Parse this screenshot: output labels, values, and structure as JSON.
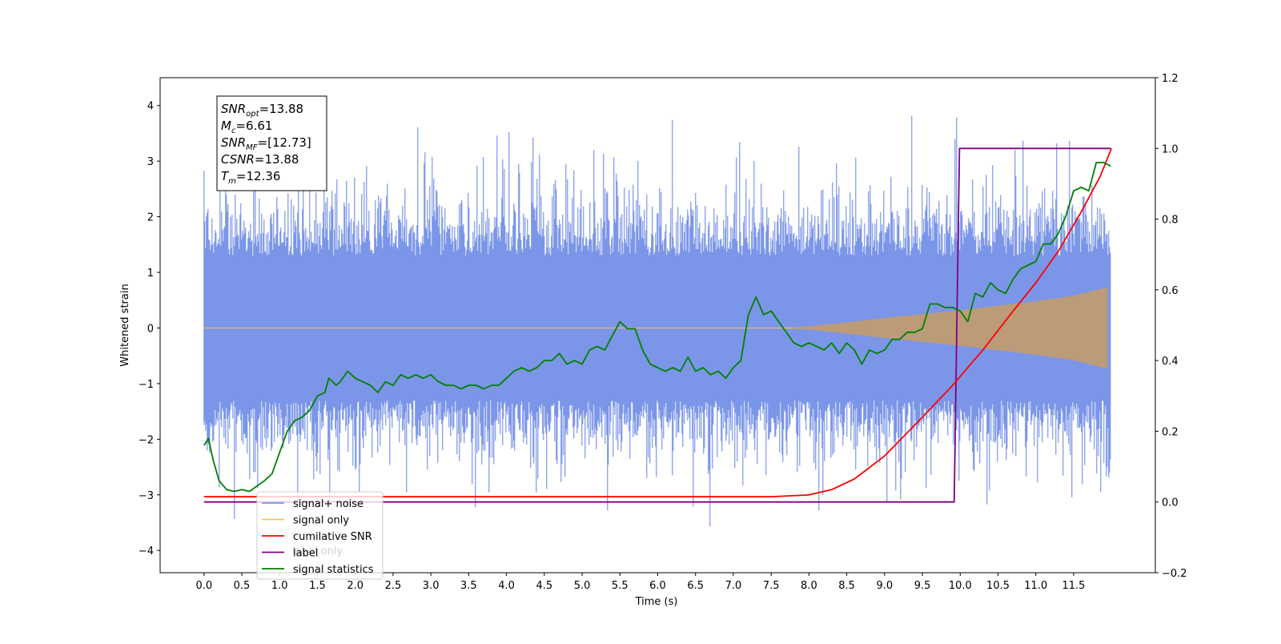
{
  "chart_data": {
    "type": "line",
    "xlabel": "Time (s)",
    "ylabel": "Whitened strain",
    "xlim": [
      -0.58,
      12.58
    ],
    "ylim": [
      -4.4,
      4.5
    ],
    "y2lim": [
      -0.2,
      1.2
    ],
    "x_ticks": [
      "0.0",
      "0.5",
      "1.0",
      "1.5",
      "2.0",
      "2.5",
      "3.0",
      "3.5",
      "4.0",
      "4.5",
      "5.0",
      "5.5",
      "6.0",
      "6.5",
      "7.0",
      "7.5",
      "8.0",
      "8.5",
      "9.0",
      "9.5",
      "10.0",
      "10.5",
      "11.0",
      "11.5"
    ],
    "y_ticks": [
      "4",
      "3",
      "2",
      "1",
      "0",
      "−1",
      "−2",
      "−3",
      "−4"
    ],
    "y2_ticks": [
      "1.2",
      "1.0",
      "0.8",
      "0.6",
      "0.4",
      "0.2",
      "0.0",
      "−0.2"
    ],
    "annotation": {
      "lines": [
        {
          "sym": "SNR",
          "sub": "opt",
          "val": "=13.88"
        },
        {
          "sym": "M",
          "sub": "c",
          "val": "=6.61"
        },
        {
          "sym": "SNR",
          "sub": "MF",
          "val": "=[12.73]"
        },
        {
          "sym": "CSNR",
          "sub": "",
          "val": "=13.88"
        },
        {
          "sym": "T",
          "sub": "m",
          "val": "=12.36"
        }
      ]
    },
    "legend": {
      "position": "lower-left",
      "entries": [
        {
          "label": "signal+ noise",
          "color": "#7b96e8"
        },
        {
          "label": "signal only",
          "color": "#ffc05c"
        },
        {
          "label": "cumilative SNR",
          "color": "#ff0000"
        },
        {
          "label": "label",
          "color": "#800080"
        },
        {
          "label": "signal statistics",
          "color": "#008000"
        }
      ],
      "occluded_text": "label only"
    },
    "colors": {
      "noise": "#7b96e8",
      "signal_fill": "#bc9b78",
      "signal_line": "#ffc05c",
      "csnr": "#ff0000",
      "label": "#800080",
      "stats": "#008000"
    },
    "series": [
      {
        "name": "signal+ noise",
        "axis": "left",
        "description_values": {
          "typical_min": -2.2,
          "typical_max": 2.3,
          "peak_max": 4.15,
          "peak_min": -3.95,
          "x_range": [
            0.0,
            11.99
          ]
        }
      },
      {
        "name": "signal only",
        "axis": "left",
        "envelope": {
          "x": [
            0,
            7.5,
            8.0,
            8.5,
            9.0,
            9.5,
            10.0,
            10.5,
            11.0,
            11.5,
            12.0
          ],
          "amp": [
            0,
            0,
            0.03,
            0.1,
            0.18,
            0.25,
            0.32,
            0.4,
            0.48,
            0.58,
            0.75
          ]
        }
      },
      {
        "name": "cumilative SNR",
        "axis": "right",
        "x": [
          0,
          7.5,
          8.0,
          8.3,
          8.6,
          9.0,
          9.5,
          9.9,
          10.3,
          10.7,
          11.0,
          11.3,
          11.6,
          11.85,
          12.0
        ],
        "y": [
          0.015,
          0.015,
          0.02,
          0.035,
          0.065,
          0.13,
          0.24,
          0.33,
          0.43,
          0.54,
          0.62,
          0.71,
          0.82,
          0.92,
          1.0
        ]
      },
      {
        "name": "label",
        "axis": "right",
        "x": [
          0,
          9.92,
          9.99,
          11.99
        ],
        "y": [
          0.0,
          0.0,
          1.0,
          1.0
        ]
      },
      {
        "name": "signal statistics",
        "axis": "right",
        "x": [
          0.0,
          0.06,
          0.12,
          0.2,
          0.3,
          0.4,
          0.5,
          0.6,
          0.8,
          0.9,
          1.0,
          1.1,
          1.2,
          1.3,
          1.4,
          1.5,
          1.6,
          1.65,
          1.75,
          1.8,
          1.9,
          2.0,
          2.1,
          2.2,
          2.3,
          2.4,
          2.5,
          2.6,
          2.7,
          2.8,
          2.9,
          3.0,
          3.1,
          3.2,
          3.3,
          3.4,
          3.5,
          3.6,
          3.7,
          3.8,
          3.9,
          4.0,
          4.1,
          4.2,
          4.3,
          4.4,
          4.5,
          4.6,
          4.7,
          4.8,
          4.9,
          5.0,
          5.1,
          5.2,
          5.3,
          5.4,
          5.5,
          5.6,
          5.7,
          5.8,
          5.9,
          6.0,
          6.1,
          6.2,
          6.3,
          6.4,
          6.5,
          6.6,
          6.7,
          6.8,
          6.9,
          7.0,
          7.1,
          7.2,
          7.3,
          7.4,
          7.5,
          7.6,
          7.7,
          7.8,
          7.9,
          8.0,
          8.1,
          8.2,
          8.3,
          8.4,
          8.5,
          8.6,
          8.7,
          8.8,
          8.9,
          9.0,
          9.1,
          9.2,
          9.3,
          9.4,
          9.5,
          9.6,
          9.7,
          9.8,
          9.9,
          10.0,
          10.1,
          10.2,
          10.3,
          10.4,
          10.5,
          10.6,
          10.7,
          10.8,
          10.9,
          11.0,
          11.1,
          11.2,
          11.3,
          11.4,
          11.5,
          11.6,
          11.7,
          11.8,
          11.9,
          11.99
        ],
        "y": [
          0.16,
          0.18,
          0.12,
          0.06,
          0.035,
          0.03,
          0.035,
          0.03,
          0.06,
          0.08,
          0.14,
          0.2,
          0.23,
          0.24,
          0.26,
          0.3,
          0.31,
          0.35,
          0.33,
          0.34,
          0.37,
          0.35,
          0.34,
          0.33,
          0.31,
          0.34,
          0.33,
          0.36,
          0.35,
          0.36,
          0.35,
          0.36,
          0.34,
          0.33,
          0.33,
          0.32,
          0.33,
          0.33,
          0.32,
          0.33,
          0.33,
          0.35,
          0.37,
          0.38,
          0.37,
          0.38,
          0.4,
          0.4,
          0.42,
          0.39,
          0.4,
          0.39,
          0.43,
          0.44,
          0.43,
          0.47,
          0.51,
          0.49,
          0.49,
          0.43,
          0.39,
          0.38,
          0.37,
          0.38,
          0.37,
          0.41,
          0.37,
          0.38,
          0.36,
          0.37,
          0.35,
          0.38,
          0.4,
          0.53,
          0.58,
          0.53,
          0.54,
          0.51,
          0.48,
          0.45,
          0.44,
          0.45,
          0.44,
          0.43,
          0.45,
          0.42,
          0.45,
          0.43,
          0.39,
          0.43,
          0.42,
          0.43,
          0.46,
          0.46,
          0.48,
          0.48,
          0.49,
          0.56,
          0.56,
          0.55,
          0.55,
          0.54,
          0.51,
          0.59,
          0.58,
          0.62,
          0.6,
          0.59,
          0.63,
          0.66,
          0.67,
          0.68,
          0.73,
          0.73,
          0.76,
          0.81,
          0.88,
          0.89,
          0.88,
          0.96,
          0.96,
          0.95
        ]
      }
    ]
  }
}
